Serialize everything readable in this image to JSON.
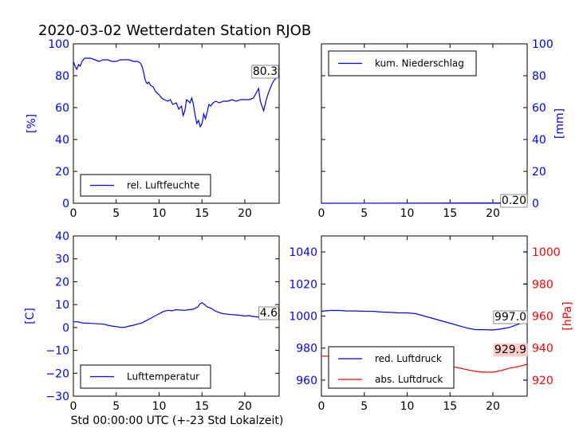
{
  "title": "2020-03-02 Wetterdaten Station RJOB",
  "xlabel": "Std 00:00:00 UTC (+-23 Std Lokalzeit)",
  "colors": {
    "blue": "#0000ff",
    "red": "#ff0000",
    "axis": "#000000",
    "label_box": "#ffcccc"
  },
  "chart_data": [
    {
      "id": "humidity",
      "type": "line",
      "ylabel": "[%]",
      "ylim": [
        0,
        100
      ],
      "yticks": [
        0,
        20,
        40,
        60,
        80,
        100
      ],
      "xlim": [
        0,
        24
      ],
      "xticks": [
        0,
        5,
        10,
        15,
        20
      ],
      "value_label": "80.3",
      "legend_position": "lower-center",
      "series": [
        {
          "name": "rel. Luftfeuchte",
          "color": "#0000ff",
          "x": [
            0,
            0.2,
            0.4,
            0.6,
            0.8,
            1.0,
            1.3,
            1.6,
            2.0,
            2.5,
            3.0,
            3.5,
            4.0,
            4.5,
            5.0,
            5.5,
            6.0,
            6.5,
            7.0,
            7.5,
            7.8,
            8.0,
            8.2,
            8.4,
            8.6,
            8.8,
            9.0,
            9.3,
            9.6,
            10.0,
            10.3,
            10.6,
            11.0,
            11.3,
            11.6,
            12.0,
            12.3,
            12.6,
            12.8,
            13.0,
            13.2,
            13.4,
            13.6,
            13.8,
            14.0,
            14.2,
            14.4,
            14.6,
            14.8,
            15.0,
            15.2,
            15.4,
            15.6,
            15.8,
            16.0,
            16.3,
            16.6,
            17.0,
            17.5,
            18.0,
            18.5,
            19.0,
            19.5,
            20.0,
            20.5,
            21.0,
            21.3,
            21.6,
            21.8,
            22.0,
            22.2,
            22.5,
            22.8,
            23.1,
            23.4,
            23.7,
            24.0
          ],
          "y": [
            89,
            86,
            84,
            87,
            86,
            89,
            91,
            91,
            91,
            90,
            89,
            90,
            90,
            89,
            89,
            90,
            90,
            90,
            89,
            89,
            88,
            86,
            82,
            77,
            75,
            76,
            74,
            73,
            70,
            68,
            66,
            65,
            64,
            65,
            62,
            63,
            59,
            61,
            55,
            58,
            65,
            64,
            63,
            66,
            62,
            55,
            50,
            52,
            48,
            50,
            56,
            53,
            57,
            62,
            61,
            63,
            64,
            63,
            64,
            64,
            65,
            64,
            65,
            65,
            65,
            66,
            69,
            72,
            64,
            61,
            58,
            65,
            70,
            74,
            77,
            79,
            80.3
          ]
        }
      ]
    },
    {
      "id": "precipitation",
      "type": "line",
      "ylabel": "[mm]",
      "ylim": [
        0,
        100
      ],
      "yticks": [
        0,
        20,
        40,
        60,
        80,
        100
      ],
      "xlim": [
        0,
        24
      ],
      "xticks": [
        0,
        5,
        10,
        15,
        20
      ],
      "value_label": "0.20",
      "legend_position": "upper-left",
      "series": [
        {
          "name": "kum. Niederschlag",
          "color": "#0000ff",
          "x": [
            0,
            24
          ],
          "y": [
            0,
            0.2
          ]
        }
      ]
    },
    {
      "id": "temperature",
      "type": "line",
      "ylabel": "[C]",
      "ylim": [
        -30,
        40
      ],
      "yticks": [
        -30,
        -20,
        -10,
        0,
        10,
        20,
        30,
        40
      ],
      "xlim": [
        0,
        24
      ],
      "xticks": [
        0,
        5,
        10,
        15,
        20
      ],
      "value_label": "4.6",
      "legend_position": "lower-center",
      "series": [
        {
          "name": "Lufttemperatur",
          "color": "#0000ff",
          "x": [
            0,
            0.5,
            1.0,
            2.0,
            3.0,
            3.5,
            4.0,
            4.5,
            5.0,
            5.5,
            6.0,
            6.5,
            7.0,
            7.5,
            8.0,
            8.5,
            9.0,
            9.5,
            10.0,
            10.5,
            11.0,
            11.5,
            12.0,
            12.5,
            13.0,
            13.5,
            14.0,
            14.5,
            14.8,
            15.0,
            15.3,
            15.6,
            16.0,
            16.5,
            17.0,
            17.5,
            18.0,
            19.0,
            19.5,
            20.0,
            20.5,
            21.0,
            21.5,
            22.0,
            22.5,
            23.0,
            23.5,
            24.0
          ],
          "y": [
            2.5,
            2.5,
            2.0,
            1.8,
            1.6,
            1.5,
            1.0,
            0.6,
            0.4,
            0.1,
            0.1,
            0.6,
            1.0,
            1.5,
            2.0,
            3.0,
            4.0,
            5.0,
            6.0,
            7.0,
            7.5,
            7.3,
            7.8,
            7.6,
            7.5,
            7.8,
            8.0,
            9.0,
            10.5,
            10.8,
            10.0,
            9.0,
            8.5,
            7.3,
            6.5,
            6.0,
            5.8,
            5.5,
            5.3,
            5.0,
            5.2,
            4.8,
            4.6,
            4.5,
            5.0,
            5.2,
            5.0,
            4.6
          ]
        }
      ]
    },
    {
      "id": "pressure",
      "type": "line",
      "ylabel": "[hPa]",
      "ylim": [
        950,
        1050
      ],
      "yticks": [
        960,
        980,
        1000,
        1020,
        1040
      ],
      "y2lim": [
        910,
        1010
      ],
      "y2ticks": [
        920,
        940,
        960,
        980,
        1000
      ],
      "xlim": [
        0,
        24
      ],
      "xticks": [
        0,
        5,
        10,
        15,
        20
      ],
      "value_label": "997.0",
      "value_label_2": "929.9",
      "legend_position": "lower-left",
      "series": [
        {
          "name": "red. Luftdruck",
          "color": "#0000ff",
          "axis": "left",
          "x": [
            0,
            1,
            2,
            3,
            4,
            5,
            6,
            7,
            8,
            9,
            10,
            11,
            12,
            13,
            14,
            15,
            16,
            17,
            18,
            19,
            20,
            21,
            22,
            23,
            24
          ],
          "y": [
            1003,
            1003.5,
            1003.5,
            1003.2,
            1003.2,
            1003,
            1003,
            1002.5,
            1002.3,
            1002,
            1002,
            1001.5,
            1000,
            998.5,
            997,
            995.5,
            994,
            992.5,
            991.5,
            991.5,
            991.3,
            992,
            993,
            995,
            997
          ]
        },
        {
          "name": "abs. Luftdruck",
          "color": "#ff0000",
          "axis": "right",
          "x": [
            0,
            1,
            2,
            3,
            4,
            5,
            6,
            7,
            8,
            9,
            10,
            11,
            12,
            13,
            14,
            15,
            16,
            17,
            18,
            19,
            20,
            21,
            22,
            23,
            24
          ],
          "y": [
            935,
            935,
            934.6,
            934.6,
            934.4,
            934.2,
            933.8,
            933.5,
            933.2,
            933,
            932.8,
            932.5,
            932,
            931,
            930,
            928.8,
            927.6,
            926.5,
            925.4,
            925,
            925,
            926,
            927.5,
            928.5,
            929.9
          ]
        }
      ]
    }
  ]
}
